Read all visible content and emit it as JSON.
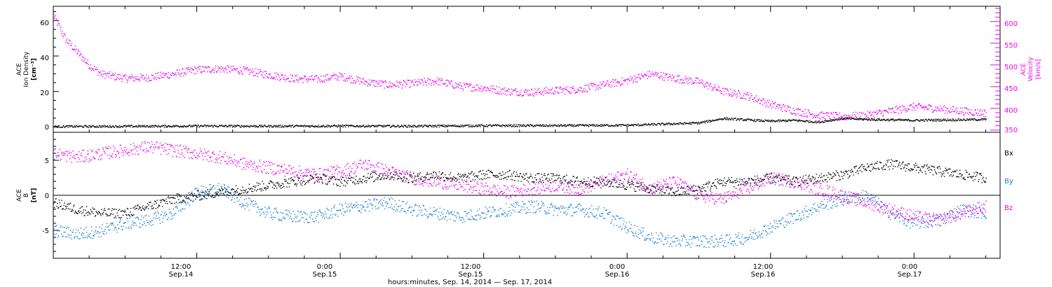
{
  "colors": {
    "black": "#000000",
    "magenta": "#ee00ee",
    "blue": "#1a7fd4"
  },
  "chart_data": [
    {
      "type": "scatter",
      "panel": "top",
      "ylabel_left": [
        "ACE",
        "Ion Density",
        "[cm⁻³]"
      ],
      "ylabel_right": [
        "ACE",
        "Velocity",
        "[km/s]"
      ],
      "yticks_left": [
        "0",
        "20",
        "40",
        "60"
      ],
      "yticks_right": [
        "350",
        "400",
        "450",
        "500",
        "550",
        "600"
      ],
      "ylim_left": [
        -3,
        68
      ],
      "ylim_right": [
        345,
        635
      ],
      "series": [
        {
          "name": "",
          "axis": "left",
          "color": "#000000",
          "x": [
            0,
            6,
            12,
            18,
            24,
            30,
            36,
            42,
            48,
            54,
            56,
            60,
            62,
            64,
            66,
            68,
            72,
            78
          ],
          "y": [
            0.5,
            0.6,
            0.8,
            0.7,
            0.8,
            0.7,
            1.0,
            1.0,
            1.2,
            2.5,
            5.0,
            3.5,
            4.0,
            3.0,
            5.0,
            4.5,
            4.0,
            4.5
          ]
        },
        {
          "name": "",
          "axis": "right",
          "color": "#ee00ee",
          "x": [
            0,
            1,
            2,
            3,
            4,
            6,
            8,
            10,
            12,
            14,
            16,
            18,
            20,
            22,
            24,
            26,
            28,
            30,
            32,
            34,
            36,
            38,
            40,
            42,
            44,
            46,
            48,
            50,
            52,
            54,
            56,
            58,
            60,
            62,
            64,
            66,
            68,
            70,
            72,
            74,
            76,
            78
          ],
          "y": [
            615,
            560,
            530,
            500,
            480,
            470,
            472,
            480,
            490,
            492,
            488,
            478,
            470,
            468,
            475,
            462,
            455,
            458,
            464,
            452,
            448,
            440,
            438,
            442,
            445,
            455,
            465,
            480,
            470,
            462,
            440,
            430,
            410,
            395,
            385,
            382,
            385,
            395,
            405,
            400,
            395,
            390
          ]
        }
      ]
    },
    {
      "type": "scatter",
      "panel": "bottom",
      "ylabel_left": [
        "ACE",
        "B",
        "[nT]"
      ],
      "yticks_left": [
        "-5",
        "0",
        "5"
      ],
      "ylim_left": [
        -9,
        9
      ],
      "legend": [
        "Bx",
        "By",
        "Bz"
      ],
      "legend_placement": "right",
      "series": [
        {
          "name": "Bx",
          "color": "#000000",
          "x": [
            0,
            2,
            4,
            6,
            8,
            10,
            12,
            14,
            16,
            18,
            20,
            22,
            24,
            26,
            28,
            30,
            32,
            34,
            36,
            38,
            40,
            42,
            44,
            46,
            48,
            50,
            52,
            54,
            56,
            58,
            60,
            62,
            64,
            66,
            68,
            70,
            72,
            74,
            76,
            78
          ],
          "y": [
            -1,
            -2,
            -2.5,
            -2.5,
            -1.5,
            -0.5,
            0,
            0.5,
            1,
            1.5,
            2,
            2.5,
            2,
            2.5,
            3,
            2.5,
            3,
            2.5,
            3,
            3,
            2.5,
            2.5,
            2,
            2,
            1.5,
            1,
            0.5,
            1,
            2,
            2,
            2.5,
            2,
            2.5,
            3,
            4,
            4.5,
            4,
            3.5,
            3,
            2.5
          ]
        },
        {
          "name": "By",
          "color": "#1a7fd4",
          "x": [
            0,
            2,
            4,
            6,
            8,
            10,
            12,
            14,
            16,
            18,
            20,
            22,
            24,
            26,
            28,
            30,
            32,
            34,
            36,
            38,
            40,
            42,
            44,
            46,
            48,
            50,
            52,
            54,
            56,
            58,
            60,
            62,
            64,
            66,
            68,
            70,
            72,
            74,
            76,
            78
          ],
          "y": [
            -5,
            -5.5,
            -5,
            -4,
            -3.5,
            -2.5,
            0.5,
            1,
            -1,
            -2.5,
            -3,
            -3,
            -2,
            -1.5,
            -1,
            -2,
            -2.5,
            -3,
            -2.5,
            -2,
            -1.5,
            -2,
            -2,
            -2.5,
            -4.5,
            -6,
            -6.5,
            -6.5,
            -6.5,
            -6,
            -4.5,
            -3,
            -1.5,
            -0.5,
            0,
            -2.5,
            -4,
            -3.5,
            -2,
            -2.5
          ]
        },
        {
          "name": "Bz",
          "color": "#ee00ee",
          "x": [
            0,
            2,
            4,
            6,
            8,
            10,
            12,
            14,
            16,
            18,
            20,
            22,
            24,
            26,
            28,
            30,
            32,
            34,
            36,
            38,
            40,
            42,
            44,
            46,
            48,
            50,
            52,
            54,
            56,
            58,
            60,
            62,
            64,
            66,
            68,
            70,
            72,
            74,
            76,
            78
          ],
          "y": [
            6,
            5.5,
            6,
            6.5,
            7,
            6.5,
            6,
            5.5,
            4.5,
            4,
            3.5,
            3,
            3.5,
            4.5,
            3.5,
            2.5,
            2,
            1.5,
            1,
            0.5,
            1,
            1.5,
            1,
            2,
            3,
            1,
            2,
            0,
            -0.5,
            1,
            2.5,
            2,
            1,
            0,
            -1,
            -2,
            -3,
            -3.5,
            -2.5,
            -1.5
          ]
        }
      ]
    }
  ],
  "x_axis": {
    "range_hours": [
      0,
      79.2
    ],
    "ticks": [
      {
        "h": 12,
        "time": "12:00",
        "date": "Sep.14"
      },
      {
        "h": 24,
        "time": "0:00",
        "date": "Sep.15"
      },
      {
        "h": 36,
        "time": "12:00",
        "date": "Sep.15"
      },
      {
        "h": 48,
        "time": "0:00",
        "date": "Sep.16"
      },
      {
        "h": 60,
        "time": "12:00",
        "date": "Sep.16"
      },
      {
        "h": 72,
        "time": "0:00",
        "date": "Sep.17"
      }
    ],
    "xlabel": "hours:minutes, Sep. 14, 2014 — Sep. 17, 2014"
  }
}
